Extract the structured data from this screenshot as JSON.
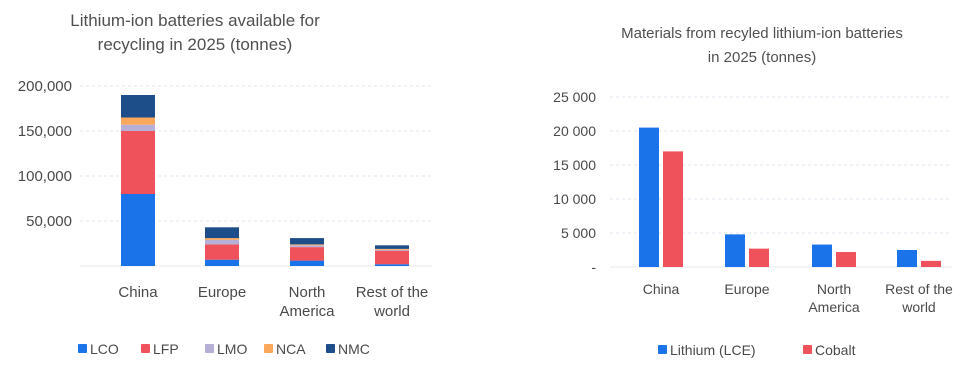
{
  "chart_data": [
    {
      "type": "bar",
      "stacked": true,
      "title_lines": [
        "Lithium-ion batteries available for",
        "recycling in 2025 (tonnes)"
      ],
      "categories": [
        [
          "China"
        ],
        [
          "Europe"
        ],
        [
          "North",
          "America"
        ],
        [
          "Rest of the",
          "world"
        ]
      ],
      "ylim": [
        0,
        200000
      ],
      "yticks": [
        0,
        50000,
        100000,
        150000,
        200000
      ],
      "ytick_labels": [
        "",
        "50,000",
        "100,000",
        "150,000",
        "200,000"
      ],
      "grid": true,
      "legend_position": "bottom",
      "series": [
        {
          "name": "LCO",
          "color": "#1a73e8",
          "values": [
            80000,
            7000,
            6000,
            2000
          ]
        },
        {
          "name": "LFP",
          "color": "#f0525c",
          "values": [
            70000,
            17000,
            15000,
            15000
          ]
        },
        {
          "name": "LMO",
          "color": "#b6afd6",
          "values": [
            7000,
            5000,
            2000,
            1000
          ]
        },
        {
          "name": "NCA",
          "color": "#fca85c",
          "values": [
            8000,
            2000,
            1000,
            1000
          ]
        },
        {
          "name": "NMC",
          "color": "#1d4e89",
          "values": [
            25000,
            12000,
            7000,
            4000
          ]
        }
      ]
    },
    {
      "type": "bar",
      "title_lines": [
        "Materials from recyled lithium-ion batteries",
        "in 2025 (tonnes)"
      ],
      "categories": [
        [
          "China"
        ],
        [
          "Europe"
        ],
        [
          "North",
          "America"
        ],
        [
          "Rest of the",
          "world"
        ]
      ],
      "ylim": [
        0,
        25000
      ],
      "yticks": [
        0,
        5000,
        10000,
        15000,
        20000,
        25000
      ],
      "ytick_labels": [
        "-",
        "5 000",
        "10 000",
        "15 000",
        "20 000",
        "25 000"
      ],
      "grid": true,
      "legend_position": "bottom",
      "series": [
        {
          "name": "Lithium (LCE)",
          "color": "#1a73e8",
          "values": [
            20500,
            4800,
            3300,
            2500
          ]
        },
        {
          "name": "Cobalt",
          "color": "#f0525c",
          "values": [
            17000,
            2700,
            2200,
            900
          ]
        }
      ]
    }
  ]
}
